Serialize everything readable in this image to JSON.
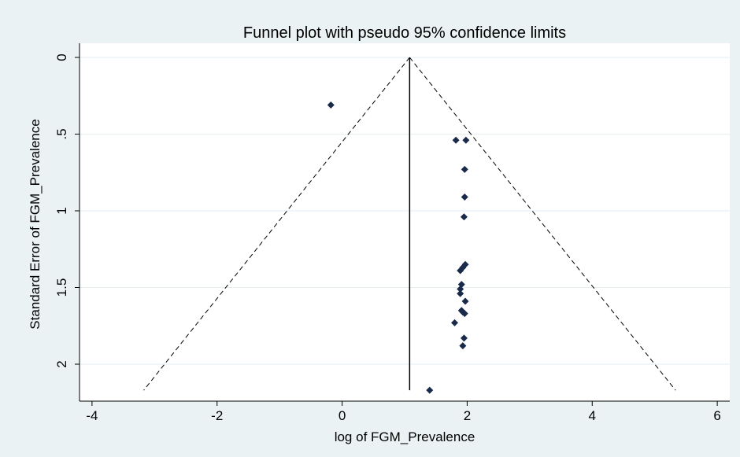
{
  "chart_data": {
    "type": "scatter",
    "title": "Funnel plot with pseudo 95% confidence limits",
    "xlabel": "log of FGM_Prevalence",
    "ylabel": "Standard Error of FGM_Prevalence",
    "xlim": [
      -4.2,
      6.2
    ],
    "ylim": [
      0,
      2.2
    ],
    "y_reversed": true,
    "x_ticks": [
      -4,
      -2,
      0,
      2,
      4,
      6
    ],
    "x_tick_labels": [
      "-4",
      "-2",
      "0",
      "2",
      "4",
      "6"
    ],
    "y_ticks": [
      0,
      0.5,
      1,
      1.5,
      2
    ],
    "y_tick_labels": [
      "0",
      ".5",
      "1",
      "1.5",
      "2"
    ],
    "grid": "horizontal",
    "pooled_estimate": 1.08,
    "ci_multiplier": 1.96,
    "funnel_se_max": 2.17,
    "points": [
      {
        "x": -0.18,
        "y": 0.31
      },
      {
        "x": 1.82,
        "y": 0.54
      },
      {
        "x": 1.98,
        "y": 0.54
      },
      {
        "x": 1.96,
        "y": 0.73
      },
      {
        "x": 1.96,
        "y": 0.91
      },
      {
        "x": 1.95,
        "y": 1.04
      },
      {
        "x": 1.97,
        "y": 1.35
      },
      {
        "x": 1.93,
        "y": 1.37
      },
      {
        "x": 1.89,
        "y": 1.39
      },
      {
        "x": 1.91,
        "y": 1.48
      },
      {
        "x": 1.89,
        "y": 1.51
      },
      {
        "x": 1.89,
        "y": 1.54
      },
      {
        "x": 1.97,
        "y": 1.59
      },
      {
        "x": 1.91,
        "y": 1.65
      },
      {
        "x": 1.93,
        "y": 1.66
      },
      {
        "x": 1.96,
        "y": 1.67
      },
      {
        "x": 1.8,
        "y": 1.73
      },
      {
        "x": 1.95,
        "y": 1.83
      },
      {
        "x": 1.93,
        "y": 1.88
      },
      {
        "x": 1.4,
        "y": 2.17
      }
    ],
    "colors": {
      "background": "#eaf2f3",
      "plot_background": "#ffffff",
      "marker": "#1a2a4a",
      "gridline": "#e6eef0",
      "line": "#000000"
    }
  }
}
